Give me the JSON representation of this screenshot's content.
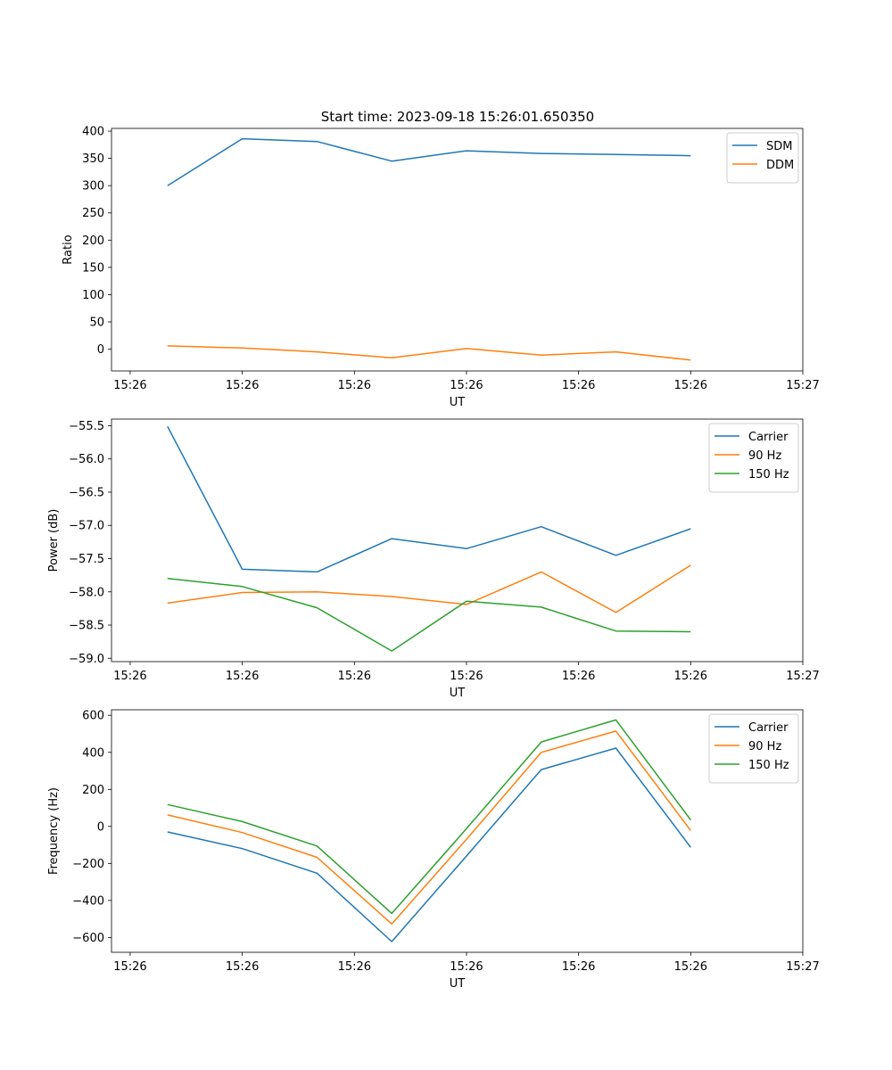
{
  "figure_title": "Start time: 2023-09-18 15:26:01.650350",
  "colors": {
    "blue": "#1f77b4",
    "orange": "#ff7f0e",
    "green": "#2ca02c"
  },
  "chart_data": [
    {
      "type": "line",
      "ylabel": "Ratio",
      "xlabel": "UT",
      "xlim": [
        -0.75,
        8.5
      ],
      "ylim": [
        -40,
        405
      ],
      "x_ticks": [
        -0.5,
        1,
        2.5,
        4,
        5.5,
        7,
        8.5
      ],
      "x_tick_labels": [
        "15:26",
        "15:26",
        "15:26",
        "15:26",
        "15:26",
        "15:26",
        "15:27"
      ],
      "y_ticks": [
        0,
        50,
        100,
        150,
        200,
        250,
        300,
        350,
        400
      ],
      "y_tick_labels": [
        "0",
        "50",
        "100",
        "150",
        "200",
        "250",
        "300",
        "350",
        "400"
      ],
      "legend_location": "top-right",
      "x": [
        0,
        1,
        2,
        3,
        4,
        5,
        6,
        7
      ],
      "series": [
        {
          "name": "SDM",
          "color": "#1f77b4",
          "values": [
            300,
            386,
            381,
            345,
            364,
            359,
            357,
            355
          ]
        },
        {
          "name": "DDM",
          "color": "#ff7f0e",
          "values": [
            6,
            2,
            -5,
            -16,
            1,
            -11,
            -5,
            -20
          ]
        }
      ]
    },
    {
      "type": "line",
      "ylabel": "Power (dB)",
      "xlabel": "UT",
      "xlim": [
        -0.75,
        8.5
      ],
      "ylim": [
        -59.05,
        -55.4
      ],
      "x_ticks": [
        -0.5,
        1,
        2.5,
        4,
        5.5,
        7,
        8.5
      ],
      "x_tick_labels": [
        "15:26",
        "15:26",
        "15:26",
        "15:26",
        "15:26",
        "15:26",
        "15:27"
      ],
      "y_ticks": [
        -59.0,
        -58.5,
        -58.0,
        -57.5,
        -57.0,
        -56.5,
        -56.0,
        -55.5
      ],
      "y_tick_labels": [
        "−59.0",
        "−58.5",
        "−58.0",
        "−57.5",
        "−57.0",
        "−56.5",
        "−56.0",
        "−55.5"
      ],
      "legend_location": "top-right",
      "x": [
        0,
        1,
        2,
        3,
        4,
        5,
        6,
        7
      ],
      "series": [
        {
          "name": "Carrier",
          "color": "#1f77b4",
          "values": [
            -55.51,
            -57.66,
            -57.7,
            -57.2,
            -57.35,
            -57.02,
            -57.45,
            -57.05
          ]
        },
        {
          "name": "90 Hz",
          "color": "#ff7f0e",
          "values": [
            -58.17,
            -58.01,
            -58.0,
            -58.07,
            -58.19,
            -57.7,
            -58.31,
            -57.6
          ]
        },
        {
          "name": "150 Hz",
          "color": "#2ca02c",
          "values": [
            -57.8,
            -57.92,
            -58.24,
            -58.89,
            -58.14,
            -58.23,
            -58.59,
            -58.6
          ]
        }
      ]
    },
    {
      "type": "line",
      "ylabel": "Frequency (Hz)",
      "xlabel": "UT",
      "xlim": [
        -0.75,
        8.5
      ],
      "ylim": [
        -680,
        630
      ],
      "x_ticks": [
        -0.5,
        1,
        2.5,
        4,
        5.5,
        7,
        8.5
      ],
      "x_tick_labels": [
        "15:26",
        "15:26",
        "15:26",
        "15:26",
        "15:26",
        "15:26",
        "15:27"
      ],
      "y_ticks": [
        -600,
        -400,
        -200,
        0,
        200,
        400,
        600
      ],
      "y_tick_labels": [
        "−600",
        "−400",
        "−200",
        "0",
        "200",
        "400",
        "600"
      ],
      "legend_location": "top-right",
      "x": [
        0,
        1,
        2,
        3,
        4,
        5,
        6,
        7
      ],
      "series": [
        {
          "name": "Carrier",
          "color": "#1f77b4",
          "values": [
            -30,
            -120,
            -253,
            -622,
            -160,
            307,
            423,
            -113
          ]
        },
        {
          "name": "90 Hz",
          "color": "#ff7f0e",
          "values": [
            62,
            -33,
            -167,
            -527,
            -70,
            400,
            515,
            -22
          ]
        },
        {
          "name": "150 Hz",
          "color": "#2ca02c",
          "values": [
            118,
            26,
            -106,
            -470,
            -12,
            456,
            575,
            35
          ]
        }
      ]
    }
  ]
}
